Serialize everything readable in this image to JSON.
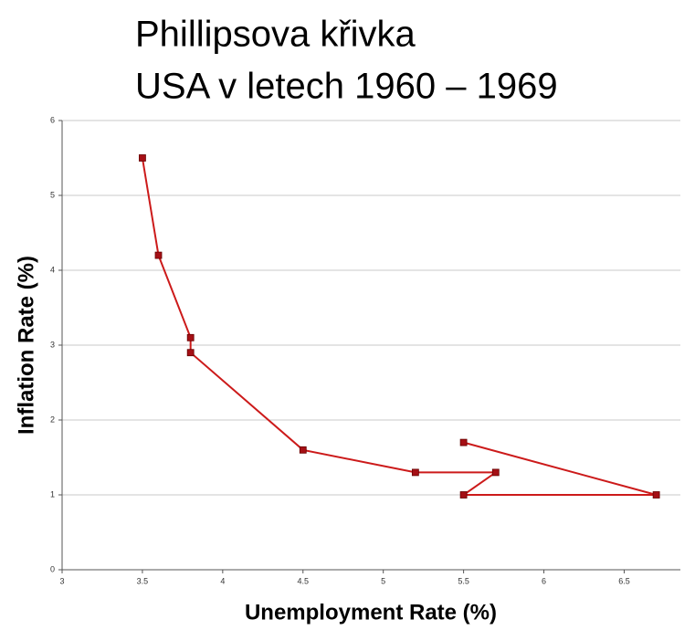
{
  "chart_data": {
    "type": "line",
    "title": "Phillipsova křivka",
    "subtitle": "USA v letech 1960 – 1969",
    "x_label": "Unemployment Rate (%)",
    "y_label": "Inflation Rate (%)",
    "x": [
      5.5,
      6.7,
      5.5,
      5.7,
      5.2,
      4.5,
      3.8,
      3.8,
      3.6,
      3.5
    ],
    "values": [
      1.7,
      1.0,
      1.0,
      1.3,
      1.3,
      1.6,
      2.9,
      3.1,
      4.2,
      5.5
    ],
    "color": "#cc1a1a",
    "marker_color": "#a50f15",
    "xlim": [
      3,
      6.85
    ],
    "xticks": [
      3,
      3.5,
      4,
      4.5,
      5,
      5.5,
      6,
      6.5
    ],
    "ylim": [
      0,
      6
    ],
    "yticks": [
      0,
      1,
      2,
      3,
      4,
      5,
      6
    ],
    "grid": true
  }
}
